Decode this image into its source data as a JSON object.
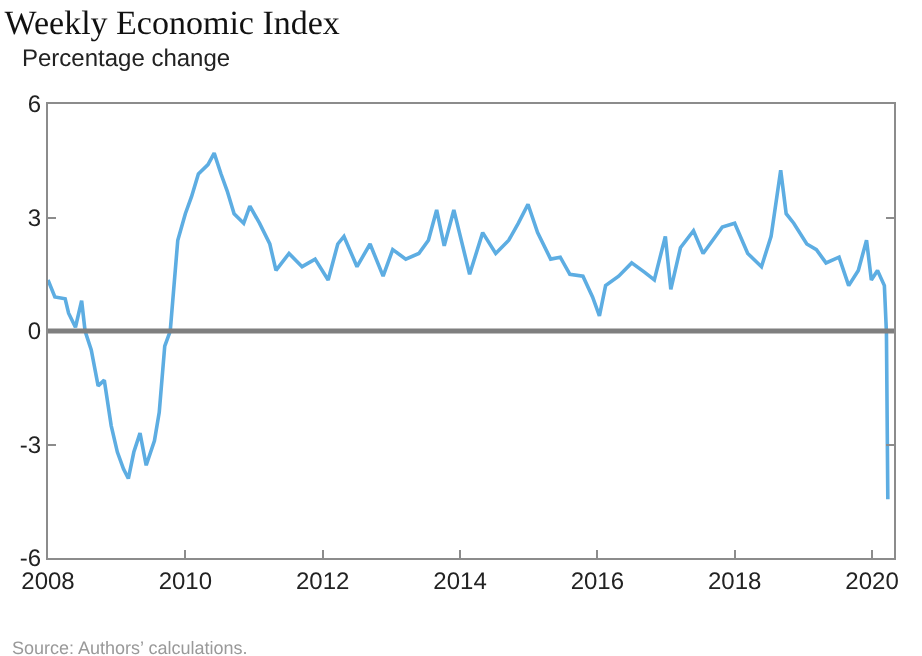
{
  "chart_data": {
    "type": "line",
    "title": "Weekly Economic Index",
    "ylabel": "Percentage change",
    "annotations": [
      "Source: Authors’ calculations."
    ],
    "x": [
      2008.0,
      2008.1,
      2008.25,
      2008.3,
      2008.4,
      2008.49,
      2008.54,
      2008.63,
      2008.73,
      2008.82,
      2008.92,
      2009.01,
      2009.1,
      2009.17,
      2009.25,
      2009.34,
      2009.43,
      2009.55,
      2009.62,
      2009.7,
      2009.78,
      2009.89,
      2010.0,
      2010.09,
      2010.19,
      2010.33,
      2010.42,
      2010.52,
      2010.61,
      2010.71,
      2010.85,
      2010.94,
      2011.08,
      2011.23,
      2011.32,
      2011.51,
      2011.7,
      2011.89,
      2012.08,
      2012.22,
      2012.31,
      2012.5,
      2012.69,
      2012.88,
      2013.02,
      2013.21,
      2013.4,
      2013.54,
      2013.66,
      2013.77,
      2013.91,
      2014.14,
      2014.33,
      2014.52,
      2014.71,
      2014.85,
      2014.99,
      2015.13,
      2015.32,
      2015.46,
      2015.6,
      2015.79,
      2015.93,
      2016.03,
      2016.12,
      2016.31,
      2016.5,
      2016.69,
      2016.83,
      2016.99,
      2017.07,
      2017.21,
      2017.4,
      2017.54,
      2017.68,
      2017.82,
      2018.0,
      2018.19,
      2018.39,
      2018.53,
      2018.67,
      2018.75,
      2018.86,
      2019.05,
      2019.19,
      2019.33,
      2019.52,
      2019.66,
      2019.8,
      2019.92,
      2019.99,
      2020.08,
      2020.18,
      2020.21,
      2020.23
    ],
    "series": [
      {
        "color": "#5dade2",
        "values": [
          1.35,
          0.9,
          0.85,
          0.47,
          0.1,
          0.8,
          0,
          -0.5,
          -1.45,
          -1.3,
          -2.5,
          -3.2,
          -3.65,
          -3.9,
          -3.2,
          -2.7,
          -3.55,
          -2.9,
          -2.15,
          -0.4,
          0,
          2.4,
          3.1,
          3.55,
          4.15,
          4.4,
          4.7,
          4.15,
          3.7,
          3.1,
          2.85,
          3.3,
          2.85,
          2.3,
          1.6,
          2.05,
          1.7,
          1.9,
          1.35,
          2.3,
          2.5,
          1.7,
          2.3,
          1.45,
          2.15,
          1.9,
          2.05,
          2.4,
          3.2,
          2.25,
          3.2,
          1.5,
          2.6,
          2.05,
          2.4,
          2.85,
          3.35,
          2.6,
          1.9,
          1.95,
          1.5,
          1.45,
          0.9,
          0.4,
          1.2,
          1.45,
          1.8,
          1.55,
          1.35,
          2.5,
          1.1,
          2.2,
          2.65,
          2.05,
          2.4,
          2.75,
          2.85,
          2.05,
          1.7,
          2.5,
          4.25,
          3.1,
          2.85,
          2.3,
          2.15,
          1.8,
          1.95,
          1.2,
          1.6,
          2.4,
          1.35,
          1.6,
          1.2,
          -0.05,
          -4.45
        ]
      }
    ],
    "xlim": [
      2008,
      2020.32
    ],
    "xticks": [
      2008,
      2010,
      2012,
      2014,
      2016,
      2018,
      2020
    ],
    "ylim": [
      -6,
      6
    ],
    "yticks": [
      -6,
      -3,
      0,
      3,
      6
    ],
    "ref_lines": [
      {
        "axis": "y",
        "value": 0,
        "color": "#7f7f7f"
      }
    ],
    "grid": false,
    "legend": false,
    "marker": "none",
    "line_style": "solid"
  }
}
